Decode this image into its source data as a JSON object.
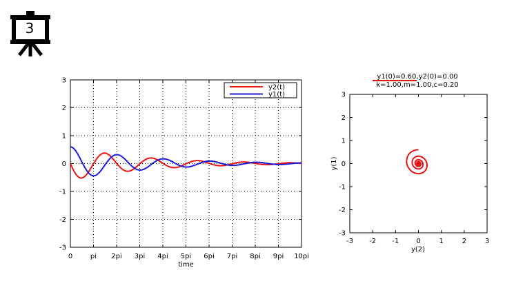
{
  "slide": {
    "number": "3",
    "icon": "presentation-board-icon"
  },
  "chart_data": [
    {
      "type": "line",
      "title": "",
      "xlabel": "time",
      "ylabel": "",
      "xlim": [
        0,
        31.4159
      ],
      "ylim": [
        -3,
        3
      ],
      "x_ticks": [
        0,
        3.1416,
        6.2832,
        9.4248,
        12.5664,
        15.708,
        18.8496,
        21.9911,
        25.1327,
        28.2743,
        31.4159
      ],
      "x_tick_labels": [
        "0",
        "pi",
        "2pi",
        "3pi",
        "4pi",
        "5pi",
        "6pi",
        "7pi",
        "8pi",
        "9pi",
        "10pi"
      ],
      "y_ticks": [
        -3,
        -2,
        -1,
        0,
        1,
        2,
        3
      ],
      "y_tick_labels": [
        "-3",
        "-2",
        "-1",
        "0",
        "1",
        "2",
        "3"
      ],
      "grid": true,
      "legend": "top-right",
      "model": {
        "k": 1.0,
        "m": 1.0,
        "c": 0.2,
        "y1_0": 0.6,
        "y2_0": 0.0
      },
      "series": [
        {
          "name": "y2(t)",
          "color": "#ee1111",
          "variable": "y2"
        },
        {
          "name": "y1(t)",
          "color": "#1a1adc",
          "variable": "y1"
        }
      ]
    },
    {
      "type": "line",
      "title": "y1(0)=0.60,y2(0)=0.00",
      "subtitle": "k=1.00,m=1.00,c=0.20",
      "xlabel": "y(2)",
      "ylabel": "y(1)",
      "xlim": [
        -3,
        3
      ],
      "ylim": [
        -3,
        3
      ],
      "x_ticks": [
        -3,
        -2,
        -1,
        0,
        1,
        2,
        3
      ],
      "x_tick_labels": [
        "-3",
        "-2",
        "-1",
        "0",
        "1",
        "2",
        "3"
      ],
      "y_ticks": [
        -3,
        -2,
        -1,
        0,
        1,
        2,
        3
      ],
      "y_tick_labels": [
        "-3",
        "-2",
        "-1",
        "0",
        "1",
        "2",
        "3"
      ],
      "grid": false,
      "series": [
        {
          "color": "#ee1111",
          "x_variable": "y2",
          "y_variable": "y1"
        }
      ]
    }
  ]
}
